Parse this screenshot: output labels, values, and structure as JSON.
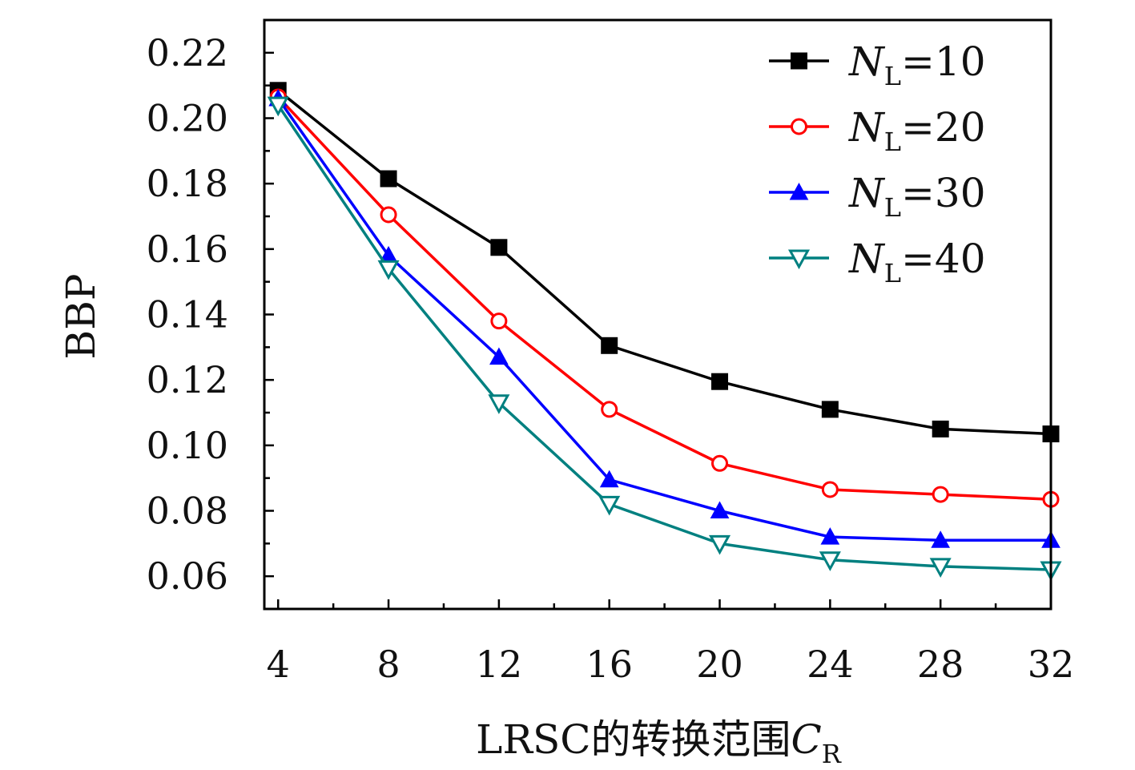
{
  "chart_data": {
    "type": "line",
    "xlabel": "LRSC的转换范围",
    "xlabel_symbol": "C",
    "xlabel_subscript": "R",
    "ylabel": "BBP",
    "x": [
      4,
      8,
      12,
      16,
      20,
      24,
      28,
      32
    ],
    "xticks": [
      4,
      8,
      12,
      16,
      20,
      24,
      28,
      32
    ],
    "xlim": [
      3.5,
      32
    ],
    "ylim": [
      0.05,
      0.23
    ],
    "yticks": [
      0.06,
      0.08,
      0.1,
      0.12,
      0.14,
      0.16,
      0.18,
      0.2,
      0.22
    ],
    "ytick_labels": [
      "0.06",
      "0.08",
      "0.10",
      "0.12",
      "0.14",
      "0.16",
      "0.18",
      "0.20",
      "0.22"
    ],
    "grid": false,
    "legend_position": "top-right",
    "series": [
      {
        "name_symbol": "N",
        "name_subscript": "L",
        "name_suffix": "=10",
        "color": "#000000",
        "marker": "square-filled",
        "values": [
          0.2085,
          0.1815,
          0.1605,
          0.1305,
          0.1195,
          0.111,
          0.105,
          0.1035
        ]
      },
      {
        "name_symbol": "N",
        "name_subscript": "L",
        "name_suffix": "=20",
        "color": "#ff0000",
        "marker": "circle-open",
        "values": [
          0.2065,
          0.1705,
          0.138,
          0.111,
          0.0945,
          0.0865,
          0.085,
          0.0835
        ]
      },
      {
        "name_symbol": "N",
        "name_subscript": "L",
        "name_suffix": "=30",
        "color": "#0000ff",
        "marker": "triangle-up-filled",
        "values": [
          0.206,
          0.158,
          0.127,
          0.0895,
          0.08,
          0.072,
          0.071,
          0.071
        ]
      },
      {
        "name_symbol": "N",
        "name_subscript": "L",
        "name_suffix": "=40",
        "color": "#008080",
        "marker": "triangle-down-open",
        "values": [
          0.204,
          0.154,
          0.113,
          0.082,
          0.07,
          0.065,
          0.063,
          0.062
        ]
      }
    ]
  }
}
